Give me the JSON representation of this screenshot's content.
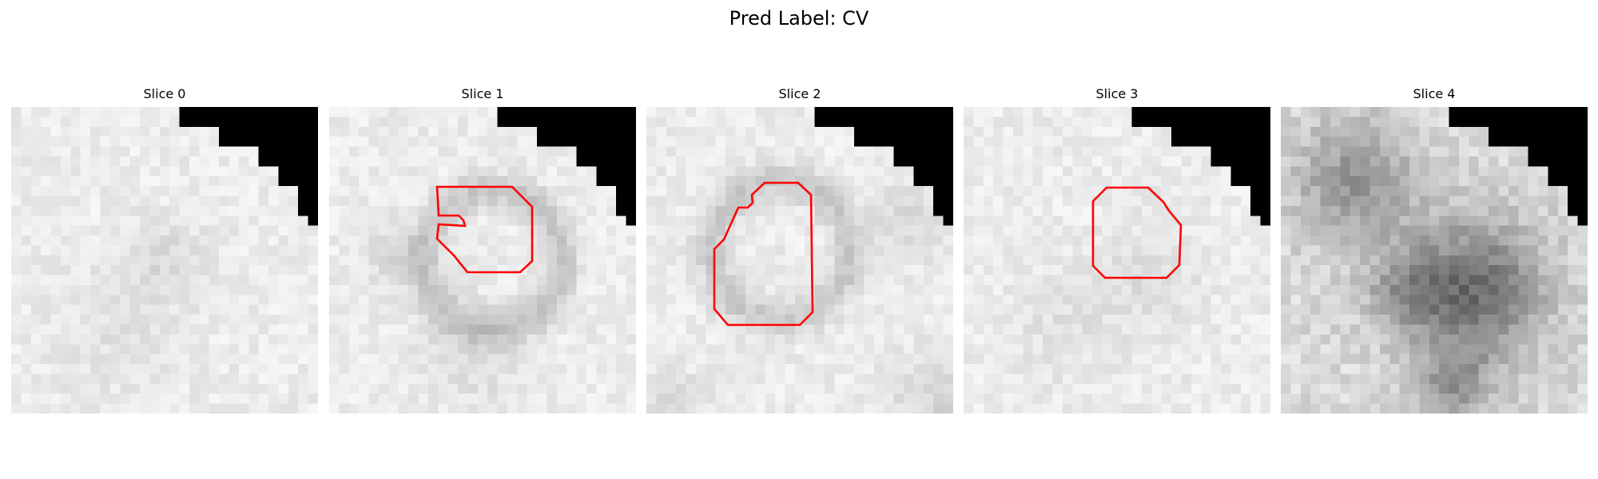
{
  "figure": {
    "title": "Pred Label: CV"
  },
  "colors": {
    "contour": "#ff0000",
    "mask": "#000000",
    "background": "#ffffff"
  },
  "panels": [
    {
      "title": "Slice 0",
      "has_contour": false
    },
    {
      "title": "Slice 1",
      "has_contour": true
    },
    {
      "title": "Slice 2",
      "has_contour": true
    },
    {
      "title": "Slice 3",
      "has_contour": true
    },
    {
      "title": "Slice 4",
      "has_contour": false
    }
  ]
}
